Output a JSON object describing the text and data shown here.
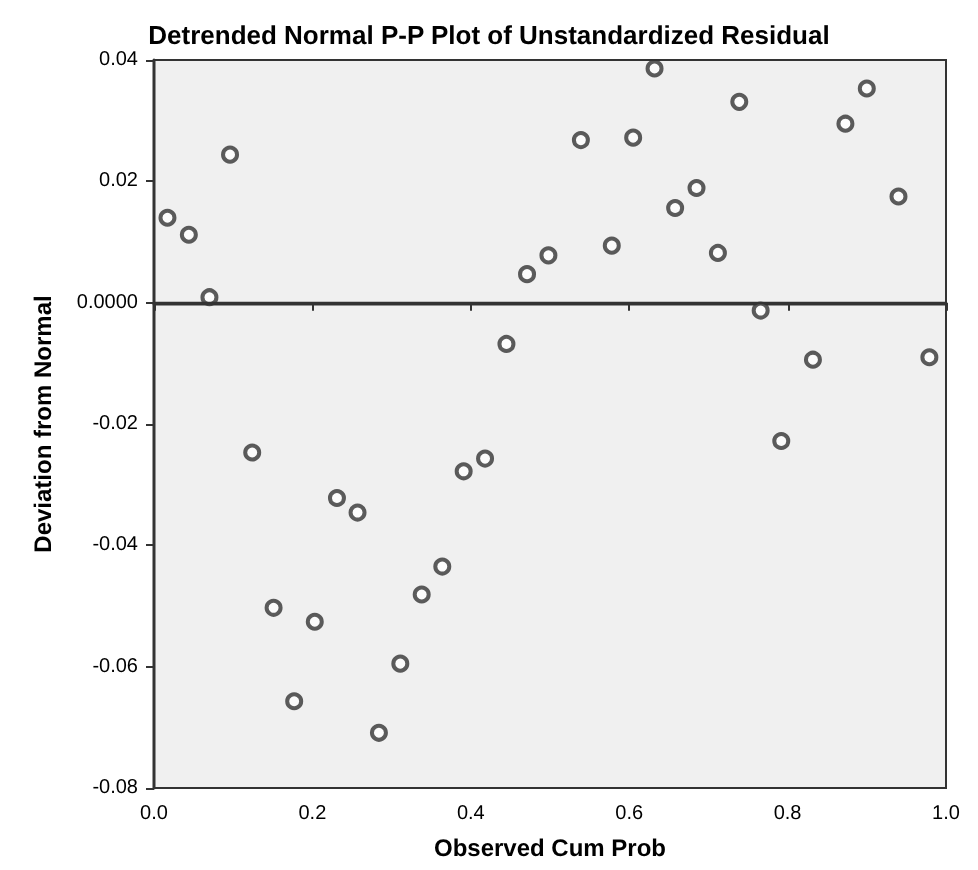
{
  "chart_data": {
    "type": "scatter",
    "title": "Detrended Normal P-P Plot of Unstandardized Residual",
    "xlabel": "Observed Cum Prob",
    "ylabel": "Deviation from Normal",
    "x": [
      0.017,
      0.044,
      0.07,
      0.096,
      0.124,
      0.151,
      0.177,
      0.203,
      0.231,
      0.257,
      0.284,
      0.311,
      0.338,
      0.364,
      0.391,
      0.418,
      0.445,
      0.471,
      0.498,
      0.539,
      0.578,
      0.605,
      0.632,
      0.658,
      0.685,
      0.712,
      0.739,
      0.766,
      0.792,
      0.832,
      0.873,
      0.9,
      0.94,
      0.979
    ],
    "values": [
      0.014,
      0.0112,
      0.0009,
      0.0244,
      -0.0247,
      -0.0503,
      -0.0657,
      -0.0526,
      -0.0322,
      -0.0346,
      -0.0709,
      -0.0595,
      -0.0481,
      -0.0435,
      -0.0278,
      -0.0257,
      -0.0068,
      0.0047,
      0.0078,
      0.0268,
      0.0094,
      0.0272,
      0.0386,
      0.0156,
      0.0189,
      0.0082,
      0.0331,
      -0.0013,
      -0.0228,
      -0.0094,
      0.0295,
      0.0353,
      0.0175,
      -0.009
    ],
    "color": "#333333",
    "marker": "circle",
    "grid": false,
    "xlim": [
      0,
      1
    ],
    "xticks": [
      {
        "value": 0,
        "label": "0.0"
      },
      {
        "value": 0.2,
        "label": "0.2"
      },
      {
        "value": 0.4,
        "label": "0.4"
      },
      {
        "value": 0.6,
        "label": "0.6"
      },
      {
        "value": 0.8,
        "label": "0.8"
      },
      {
        "value": 1,
        "label": "1.0"
      }
    ],
    "ylim": [
      -0.08,
      0.04
    ],
    "yticks": [
      -0.08,
      -0.06,
      -0.04,
      -0.02,
      {
        "value": 0,
        "label": "0.0000"
      },
      0.02,
      0.04
    ],
    "ref_lines": [
      {
        "axis": "y",
        "value": 0,
        "color": "#333333"
      }
    ]
  }
}
